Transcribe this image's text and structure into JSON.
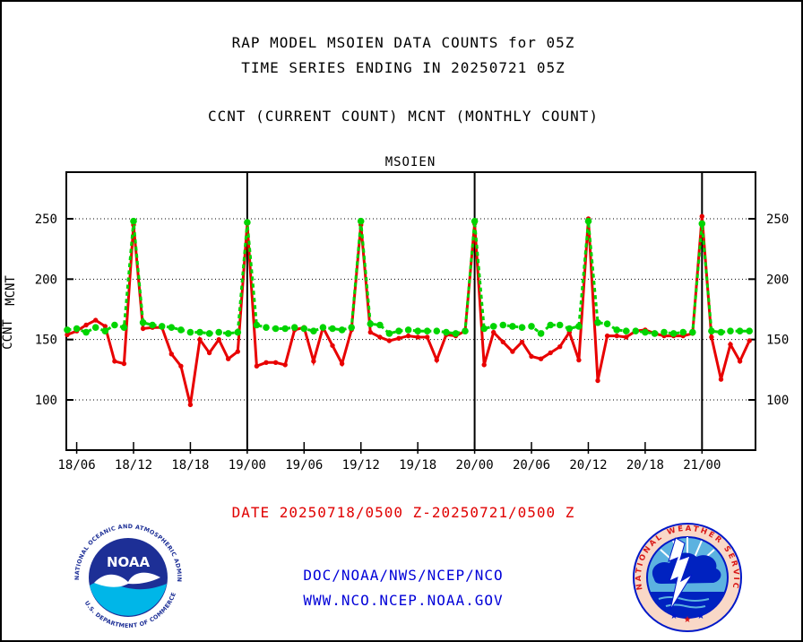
{
  "colors": {
    "ccnt_red": "#e80000",
    "mcnt_green": "#00d400",
    "link_blue": "#0000d8",
    "axis_black": "#000000",
    "background": "#ffffff"
  },
  "header": {
    "line1": "RAP MODEL MSOIEN DATA COUNTS for 05Z",
    "line2": "TIME SERIES ENDING IN 20250721 05Z",
    "line3": "CCNT (CURRENT COUNT) MCNT (MONTHLY COUNT)"
  },
  "chart_data": {
    "type": "line",
    "title": "MSOIEN",
    "title_color": "#0000d8",
    "start_time_label": "18/05",
    "end_time_label": "21/05",
    "points_hourly": 73,
    "y_axis": {
      "ticks": [
        100,
        150,
        200,
        250
      ],
      "sides": [
        "left",
        "right"
      ],
      "grid": "dotted"
    },
    "x_ticks": [
      {
        "label": "18/06",
        "hour": 1
      },
      {
        "label": "18/12",
        "hour": 7
      },
      {
        "label": "18/18",
        "hour": 13
      },
      {
        "label": "19/00",
        "hour": 19
      },
      {
        "label": "19/06",
        "hour": 25
      },
      {
        "label": "19/12",
        "hour": 31
      },
      {
        "label": "19/18",
        "hour": 37
      },
      {
        "label": "20/00",
        "hour": 43
      },
      {
        "label": "20/06",
        "hour": 49
      },
      {
        "label": "20/12",
        "hour": 55
      },
      {
        "label": "20/18",
        "hour": 61
      },
      {
        "label": "21/00",
        "hour": 67
      }
    ],
    "day_boundary_hours": [
      19,
      43,
      67
    ],
    "axis_side_labels": [
      {
        "text": "MCNT",
        "color": "#00d400"
      },
      {
        "text": "CCNT",
        "color": "#e80000"
      }
    ],
    "series": [
      {
        "name": "CCNT",
        "color": "#e80000",
        "line": "solid",
        "marker": "small-dot",
        "values": [
          154,
          157,
          162,
          166,
          161,
          132,
          130,
          245,
          159,
          160,
          160,
          138,
          128,
          96,
          150,
          139,
          150,
          134,
          140,
          246,
          128,
          131,
          131,
          129,
          158,
          160,
          132,
          160,
          145,
          130,
          158,
          245,
          156,
          152,
          149,
          151,
          153,
          152,
          152,
          133,
          154,
          153,
          157,
          246,
          129,
          156,
          148,
          140,
          148,
          136,
          134,
          139,
          144,
          156,
          133,
          250,
          116,
          153,
          153,
          152,
          157,
          158,
          155,
          153,
          153,
          153,
          155,
          252,
          152,
          117,
          146,
          132,
          149
        ]
      },
      {
        "name": "MCNT",
        "color": "#00d400",
        "line": "dashed",
        "marker": "dot",
        "values": [
          158,
          159,
          156,
          160,
          157,
          162,
          160,
          248,
          164,
          162,
          161,
          160,
          158,
          156,
          156,
          155,
          156,
          155,
          156,
          247,
          162,
          160,
          159,
          159,
          160,
          159,
          157,
          160,
          159,
          158,
          160,
          248,
          163,
          162,
          155,
          157,
          158,
          157,
          157,
          157,
          156,
          155,
          157,
          248,
          159,
          161,
          162,
          161,
          160,
          161,
          155,
          162,
          162,
          159,
          161,
          248,
          164,
          163,
          158,
          157,
          157,
          156,
          155,
          156,
          155,
          156,
          156,
          246,
          157,
          156,
          157,
          157,
          157
        ]
      }
    ]
  },
  "footer": {
    "date_line": "DATE 20250718/0500 Z-20250721/0500 Z",
    "org_line": "DOC/NOAA/NWS/NCEP/NCO",
    "url_line": "WWW.NCO.NCEP.NOAA.GOV"
  },
  "logos": {
    "noaa": {
      "name": "NOAA",
      "ring_top": "NATIONAL OCEANIC AND ATMOSPHERIC ADMINISTRATION",
      "ring_bottom": "U.S. DEPARTMENT OF COMMERCE"
    },
    "nws": {
      "ring": "NATIONAL WEATHER SERVICE",
      "star": "★"
    }
  }
}
